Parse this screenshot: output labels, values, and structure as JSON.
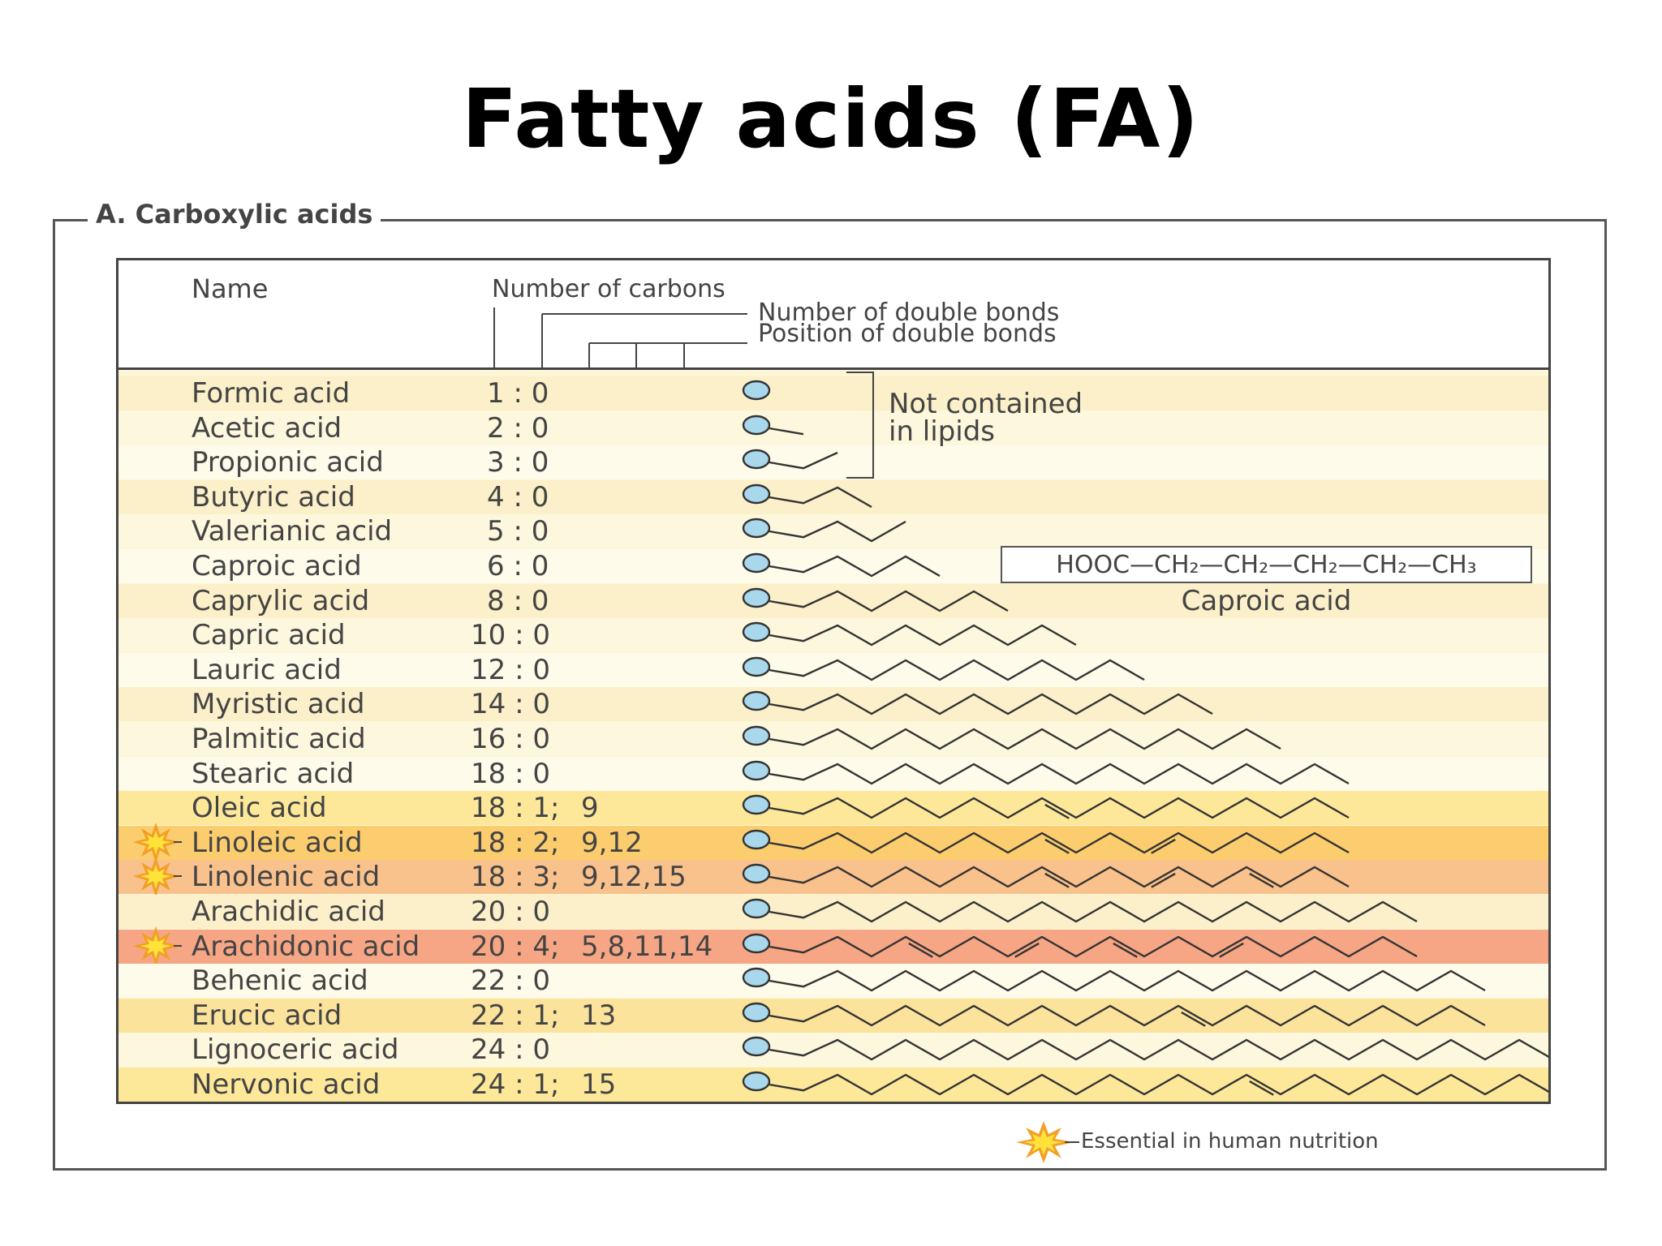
{
  "title": "Fatty acids (FA)",
  "section_label": "A. Carboxylic acids",
  "header": {
    "name": "Name",
    "carbons": "Number of carbons",
    "double_bonds": "Number of double bonds",
    "positions": "Position of double bonds"
  },
  "bracket_note_line1": "Not contained",
  "bracket_note_line2": "in lipids",
  "formula": "HOOC—CH₂—CH₂—CH₂—CH₂—CH₃",
  "formula_label": "Caproic acid",
  "legend": "Essential in human nutrition",
  "colors": {
    "head_circle": "#a9d8ec",
    "line": "#333333",
    "star_outer": "#f29f26",
    "star_inner": "#ffe23a"
  },
  "acids": [
    {
      "name": "Formic acid",
      "code": "1 : 0",
      "positions": "",
      "carbons": 1,
      "double_bonds": [],
      "essential": false
    },
    {
      "name": "Acetic acid",
      "code": "2 : 0",
      "positions": "",
      "carbons": 2,
      "double_bonds": [],
      "essential": false
    },
    {
      "name": "Propionic acid",
      "code": "3 : 0",
      "positions": "",
      "carbons": 3,
      "double_bonds": [],
      "essential": false
    },
    {
      "name": "Butyric acid",
      "code": "4 : 0",
      "positions": "",
      "carbons": 4,
      "double_bonds": [],
      "essential": false
    },
    {
      "name": "Valerianic acid",
      "code": "5 : 0",
      "positions": "",
      "carbons": 5,
      "double_bonds": [],
      "essential": false
    },
    {
      "name": "Caproic acid",
      "code": "6 : 0",
      "positions": "",
      "carbons": 6,
      "double_bonds": [],
      "essential": false
    },
    {
      "name": "Caprylic acid",
      "code": "8 : 0",
      "positions": "",
      "carbons": 8,
      "double_bonds": [],
      "essential": false
    },
    {
      "name": "Capric acid",
      "code": "10 : 0",
      "positions": "",
      "carbons": 10,
      "double_bonds": [],
      "essential": false
    },
    {
      "name": "Lauric acid",
      "code": "12 : 0",
      "positions": "",
      "carbons": 12,
      "double_bonds": [],
      "essential": false
    },
    {
      "name": "Myristic acid",
      "code": "14 : 0",
      "positions": "",
      "carbons": 14,
      "double_bonds": [],
      "essential": false
    },
    {
      "name": "Palmitic acid",
      "code": "16 : 0",
      "positions": "",
      "carbons": 16,
      "double_bonds": [],
      "essential": false
    },
    {
      "name": "Stearic acid",
      "code": "18 : 0",
      "positions": "",
      "carbons": 18,
      "double_bonds": [],
      "essential": false
    },
    {
      "name": "Oleic acid",
      "code": "18 : 1;",
      "positions": "9",
      "carbons": 18,
      "double_bonds": [
        9
      ],
      "essential": false
    },
    {
      "name": "Linoleic acid",
      "code": "18 : 2;",
      "positions": "9,12",
      "carbons": 18,
      "double_bonds": [
        9,
        12
      ],
      "essential": true
    },
    {
      "name": "Linolenic acid",
      "code": "18 : 3;",
      "positions": "9,12,15",
      "carbons": 18,
      "double_bonds": [
        9,
        12,
        15
      ],
      "essential": true
    },
    {
      "name": "Arachidic acid",
      "code": "20 : 0",
      "positions": "",
      "carbons": 20,
      "double_bonds": [],
      "essential": false
    },
    {
      "name": "Arachidonic acid",
      "code": "20 : 4;",
      "positions": "5,8,11,14",
      "carbons": 20,
      "double_bonds": [
        5,
        8,
        11,
        14
      ],
      "essential": true
    },
    {
      "name": "Behenic acid",
      "code": "22 : 0",
      "positions": "",
      "carbons": 22,
      "double_bonds": [],
      "essential": false
    },
    {
      "name": "Erucic acid",
      "code": "22 : 1;",
      "positions": "13",
      "carbons": 22,
      "double_bonds": [
        13
      ],
      "essential": false
    },
    {
      "name": "Lignoceric acid",
      "code": "24 : 0",
      "positions": "",
      "carbons": 24,
      "double_bonds": [],
      "essential": false
    },
    {
      "name": "Nervonic acid",
      "code": "24 : 1;",
      "positions": "15",
      "carbons": 24,
      "double_bonds": [
        15
      ],
      "essential": false
    }
  ]
}
